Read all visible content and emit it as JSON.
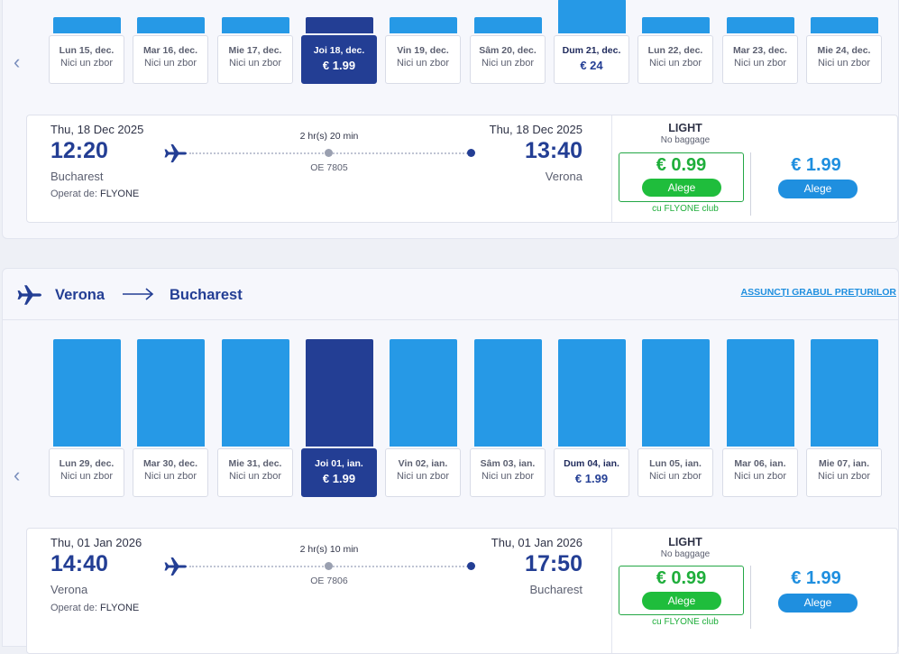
{
  "outbound": {
    "calendar": {
      "days": [
        {
          "label": "Lun 15, dec.",
          "value": "Nici un zbor",
          "has_flight": false,
          "selected": false
        },
        {
          "label": "Mar 16, dec.",
          "value": "Nici un zbor",
          "has_flight": false,
          "selected": false
        },
        {
          "label": "Mie 17, dec.",
          "value": "Nici un zbor",
          "has_flight": false,
          "selected": false
        },
        {
          "label": "Joi 18, dec.",
          "value": "€ 1.99",
          "has_flight": true,
          "selected": true
        },
        {
          "label": "Vin 19, dec.",
          "value": "Nici un zbor",
          "has_flight": false,
          "selected": false
        },
        {
          "label": "Sâm 20, dec.",
          "value": "Nici un zbor",
          "has_flight": false,
          "selected": false
        },
        {
          "label": "Dum 21, dec.",
          "value": "€ 24",
          "has_flight": true,
          "selected": false
        },
        {
          "label": "Lun 22, dec.",
          "value": "Nici un zbor",
          "has_flight": false,
          "selected": false
        },
        {
          "label": "Mar 23, dec.",
          "value": "Nici un zbor",
          "has_flight": false,
          "selected": false
        },
        {
          "label": "Mie 24, dec.",
          "value": "Nici un zbor",
          "has_flight": false,
          "selected": false
        }
      ]
    },
    "flight": {
      "dep_date": "Thu, 18 Dec 2025",
      "dep_time": "12:20",
      "dep_city": "Bucharest",
      "operator_label": "Operat de:",
      "operator": "FLYONE",
      "duration": "2 hr(s) 20 min",
      "flight_no": "OE 7805",
      "arr_date": "Thu, 18 Dec 2025",
      "arr_time": "13:40",
      "arr_city": "Verona",
      "fare_title": "LIGHT",
      "fare_sub": "No baggage",
      "club_price": "€ 0.99",
      "club_button": "Alege",
      "club_note": "cu FLYONE club",
      "std_price": "€ 1.99",
      "std_button": "Alege"
    }
  },
  "inbound": {
    "route": {
      "from": "Verona",
      "to": "Bucharest",
      "hide_link": "ASSUNCȚI GRABUL PREȚURILOR"
    },
    "calendar": {
      "days": [
        {
          "label": "Lun 29, dec.",
          "value": "Nici un zbor",
          "has_flight": false,
          "selected": false
        },
        {
          "label": "Mar 30, dec.",
          "value": "Nici un zbor",
          "has_flight": false,
          "selected": false
        },
        {
          "label": "Mie 31, dec.",
          "value": "Nici un zbor",
          "has_flight": false,
          "selected": false
        },
        {
          "label": "Joi 01, ian.",
          "value": "€ 1.99",
          "has_flight": true,
          "selected": true
        },
        {
          "label": "Vin 02, ian.",
          "value": "Nici un zbor",
          "has_flight": false,
          "selected": false
        },
        {
          "label": "Sâm 03, ian.",
          "value": "Nici un zbor",
          "has_flight": false,
          "selected": false
        },
        {
          "label": "Dum 04, ian.",
          "value": "€ 1.99",
          "has_flight": true,
          "selected": false
        },
        {
          "label": "Lun 05, ian.",
          "value": "Nici un zbor",
          "has_flight": false,
          "selected": false
        },
        {
          "label": "Mar 06, ian.",
          "value": "Nici un zbor",
          "has_flight": false,
          "selected": false
        },
        {
          "label": "Mie 07, ian.",
          "value": "Nici un zbor",
          "has_flight": false,
          "selected": false
        }
      ]
    },
    "flight": {
      "dep_date": "Thu, 01 Jan 2026",
      "dep_time": "14:40",
      "dep_city": "Verona",
      "operator_label": "Operat de:",
      "operator": "FLYONE",
      "duration": "2 hr(s) 10 min",
      "flight_no": "OE 7806",
      "arr_date": "Thu, 01 Jan 2026",
      "arr_time": "17:50",
      "arr_city": "Bucharest",
      "fare_title": "LIGHT",
      "fare_sub": "No baggage",
      "club_price": "€ 0.99",
      "club_button": "Alege",
      "club_note": "cu FLYONE club",
      "std_price": "€ 1.99",
      "std_button": "Alege"
    }
  },
  "colors": {
    "brand_navy": "#233e94",
    "bar_blue": "#2699e6",
    "club_green": "#1fbd3c",
    "price_blue": "#1f8fdf"
  },
  "icons": [
    "plane-icon",
    "chevron-left-icon",
    "arrow-right-icon"
  ]
}
